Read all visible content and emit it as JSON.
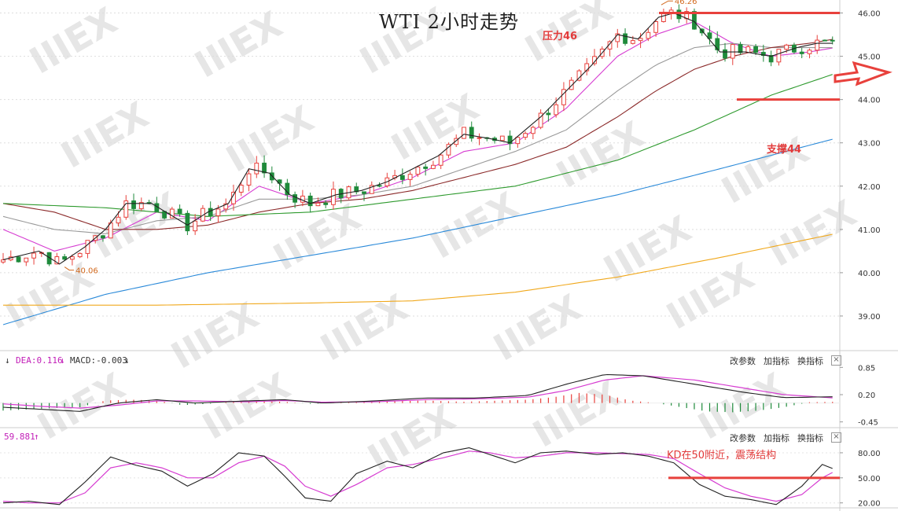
{
  "title": "WTI 2小时走势",
  "annotations": {
    "resistance": "压力46",
    "support": "支撑44",
    "kd_note": "KD在50附近，震荡结构"
  },
  "macd_panel": {
    "dea_label": "DEA:0.116",
    "macd_label": "MACD:-0.003",
    "buttons": [
      "改参数",
      "加指标",
      "换指标"
    ],
    "close": "×"
  },
  "kd_panel": {
    "k_label": "59.881",
    "buttons": [
      "改参数",
      "加指标",
      "换指标"
    ],
    "close": "×"
  },
  "colors": {
    "up": "#e8413c",
    "down": "#1f8a3b",
    "ma5": "#222222",
    "ma10": "#d63cd1",
    "ma20": "#999999",
    "ma30": "#8b2a2a",
    "ma60": "#2e9a2e",
    "ma120": "#2b8ad9",
    "ma250": "#f0a81c",
    "resistance_line": "#e8413c",
    "watermark": "#e6e6e6"
  },
  "chart_data": [
    {
      "type": "candlestick",
      "title": "WTI 2小时走势",
      "yticks": [
        "46.00",
        "45.00",
        "44.00",
        "43.00",
        "42.00",
        "41.00",
        "40.00",
        "39.00"
      ],
      "ylim": [
        38.2,
        46.3
      ],
      "price_labels": {
        "high": "46.26",
        "low": "40.06"
      },
      "levels": {
        "resistance": 46.0,
        "support": 44.0
      },
      "keypoints": {
        "close": [
          [
            0,
            40.3
          ],
          [
            14,
            40.5
          ],
          [
            22,
            40.2
          ],
          [
            32,
            40.6
          ],
          [
            40,
            41.0
          ],
          [
            48,
            41.6
          ],
          [
            58,
            41.6
          ],
          [
            72,
            41.1
          ],
          [
            80,
            41.4
          ],
          [
            88,
            41.6
          ],
          [
            96,
            42.4
          ],
          [
            104,
            42.3
          ],
          [
            112,
            41.8
          ],
          [
            120,
            41.6
          ],
          [
            130,
            41.8
          ],
          [
            140,
            41.9
          ],
          [
            150,
            42.1
          ],
          [
            160,
            42.4
          ],
          [
            170,
            42.7
          ],
          [
            180,
            43.2
          ],
          [
            190,
            43.1
          ],
          [
            198,
            43.0
          ],
          [
            210,
            43.6
          ],
          [
            220,
            44.2
          ],
          [
            230,
            44.8
          ],
          [
            240,
            45.5
          ],
          [
            248,
            45.4
          ],
          [
            256,
            45.9
          ],
          [
            262,
            46.0
          ],
          [
            270,
            45.8
          ],
          [
            280,
            45.1
          ],
          [
            290,
            45.1
          ],
          [
            300,
            45.0
          ],
          [
            310,
            45.2
          ],
          [
            318,
            45.3
          ],
          [
            325,
            45.3
          ]
        ]
      },
      "moving_averages": [
        {
          "id": "ma10",
          "points": [
            [
              0,
              41.0
            ],
            [
              20,
              40.5
            ],
            [
              40,
              40.8
            ],
            [
              60,
              41.4
            ],
            [
              80,
              41.2
            ],
            [
              100,
              42.0
            ],
            [
              120,
              41.6
            ],
            [
              140,
              41.8
            ],
            [
              160,
              42.2
            ],
            [
              180,
              42.8
            ],
            [
              200,
              43.0
            ],
            [
              220,
              43.8
            ],
            [
              240,
              45.0
            ],
            [
              255,
              45.5
            ],
            [
              270,
              45.8
            ],
            [
              285,
              45.3
            ],
            [
              300,
              45.0
            ],
            [
              315,
              45.1
            ],
            [
              325,
              45.2
            ]
          ]
        },
        {
          "id": "ma20",
          "points": [
            [
              0,
              41.3
            ],
            [
              20,
              41.0
            ],
            [
              40,
              40.9
            ],
            [
              60,
              41.2
            ],
            [
              80,
              41.3
            ],
            [
              100,
              41.7
            ],
            [
              120,
              41.7
            ],
            [
              140,
              41.8
            ],
            [
              160,
              42.0
            ],
            [
              180,
              42.4
            ],
            [
              200,
              42.8
            ],
            [
              220,
              43.3
            ],
            [
              240,
              44.2
            ],
            [
              255,
              44.8
            ],
            [
              270,
              45.2
            ],
            [
              285,
              45.3
            ],
            [
              300,
              45.2
            ],
            [
              315,
              45.2
            ],
            [
              325,
              45.2
            ]
          ]
        },
        {
          "id": "ma30",
          "points": [
            [
              0,
              41.6
            ],
            [
              20,
              41.4
            ],
            [
              40,
              41.0
            ],
            [
              60,
              41.0
            ],
            [
              80,
              41.1
            ],
            [
              100,
              41.4
            ],
            [
              120,
              41.6
            ],
            [
              140,
              41.7
            ],
            [
              160,
              41.9
            ],
            [
              180,
              42.2
            ],
            [
              200,
              42.5
            ],
            [
              220,
              42.9
            ],
            [
              240,
              43.6
            ],
            [
              255,
              44.2
            ],
            [
              270,
              44.7
            ],
            [
              285,
              45.0
            ],
            [
              300,
              45.2
            ],
            [
              315,
              45.3
            ],
            [
              325,
              45.4
            ]
          ]
        },
        {
          "id": "ma60",
          "points": [
            [
              0,
              41.6
            ],
            [
              40,
              41.5
            ],
            [
              80,
              41.3
            ],
            [
              120,
              41.4
            ],
            [
              160,
              41.7
            ],
            [
              200,
              42.0
            ],
            [
              240,
              42.6
            ],
            [
              270,
              43.3
            ],
            [
              300,
              44.1
            ],
            [
              325,
              44.6
            ]
          ]
        },
        {
          "id": "ma120",
          "points": [
            [
              0,
              38.8
            ],
            [
              40,
              39.5
            ],
            [
              80,
              40.0
            ],
            [
              120,
              40.4
            ],
            [
              160,
              40.8
            ],
            [
              200,
              41.3
            ],
            [
              240,
              41.8
            ],
            [
              280,
              42.4
            ],
            [
              325,
              43.1
            ]
          ]
        },
        {
          "id": "ma250",
          "points": [
            [
              0,
              39.25
            ],
            [
              60,
              39.25
            ],
            [
              120,
              39.3
            ],
            [
              160,
              39.35
            ],
            [
              200,
              39.55
            ],
            [
              240,
              39.9
            ],
            [
              280,
              40.35
            ],
            [
              325,
              40.9
            ]
          ]
        }
      ]
    },
    {
      "type": "macd",
      "yticks": [
        "0.85",
        "0.20",
        "-0.45"
      ],
      "ylim": [
        -0.55,
        0.95
      ],
      "dif": [
        [
          0,
          -0.1
        ],
        [
          15,
          -0.15
        ],
        [
          30,
          -0.2
        ],
        [
          45,
          0.0
        ],
        [
          60,
          0.08
        ],
        [
          75,
          0.0
        ],
        [
          95,
          0.05
        ],
        [
          110,
          0.08
        ],
        [
          125,
          0.0
        ],
        [
          145,
          0.05
        ],
        [
          165,
          0.12
        ],
        [
          185,
          0.12
        ],
        [
          205,
          0.18
        ],
        [
          220,
          0.45
        ],
        [
          235,
          0.68
        ],
        [
          250,
          0.65
        ],
        [
          270,
          0.45
        ],
        [
          290,
          0.25
        ],
        [
          305,
          0.13
        ],
        [
          325,
          0.15
        ]
      ],
      "dea": [
        [
          0,
          -0.02
        ],
        [
          15,
          -0.08
        ],
        [
          30,
          -0.12
        ],
        [
          45,
          -0.05
        ],
        [
          60,
          0.05
        ],
        [
          75,
          0.05
        ],
        [
          95,
          0.03
        ],
        [
          110,
          0.06
        ],
        [
          125,
          0.02
        ],
        [
          145,
          0.03
        ],
        [
          165,
          0.08
        ],
        [
          185,
          0.1
        ],
        [
          205,
          0.14
        ],
        [
          220,
          0.3
        ],
        [
          235,
          0.55
        ],
        [
          250,
          0.65
        ],
        [
          270,
          0.55
        ],
        [
          290,
          0.35
        ],
        [
          305,
          0.2
        ],
        [
          325,
          0.12
        ]
      ],
      "hist": [
        [
          0,
          -0.18
        ],
        [
          10,
          -0.15
        ],
        [
          20,
          -0.12
        ],
        [
          30,
          -0.1
        ],
        [
          40,
          0.06
        ],
        [
          50,
          0.08
        ],
        [
          60,
          0.06
        ],
        [
          70,
          -0.05
        ],
        [
          80,
          -0.02
        ],
        [
          90,
          0.03
        ],
        [
          100,
          0.04
        ],
        [
          110,
          0.03
        ],
        [
          120,
          -0.02
        ],
        [
          135,
          0.02
        ],
        [
          150,
          0.04
        ],
        [
          165,
          0.06
        ],
        [
          180,
          0.03
        ],
        [
          195,
          0.06
        ],
        [
          205,
          0.08
        ],
        [
          215,
          0.14
        ],
        [
          225,
          0.24
        ],
        [
          235,
          0.2
        ],
        [
          245,
          0.06
        ],
        [
          255,
          0.0
        ],
        [
          265,
          -0.1
        ],
        [
          275,
          -0.2
        ],
        [
          285,
          -0.22
        ],
        [
          295,
          -0.18
        ],
        [
          305,
          -0.1
        ],
        [
          315,
          0.02
        ],
        [
          325,
          0.03
        ]
      ]
    },
    {
      "type": "kd",
      "yticks": [
        "80.00",
        "50.00",
        "20.00"
      ],
      "ylim": [
        15,
        95
      ],
      "k": [
        [
          0,
          20
        ],
        [
          10,
          22
        ],
        [
          22,
          18
        ],
        [
          32,
          45
        ],
        [
          42,
          75
        ],
        [
          52,
          65
        ],
        [
          62,
          58
        ],
        [
          72,
          40
        ],
        [
          82,
          55
        ],
        [
          92,
          80
        ],
        [
          102,
          76
        ],
        [
          110,
          52
        ],
        [
          118,
          26
        ],
        [
          128,
          22
        ],
        [
          138,
          55
        ],
        [
          150,
          70
        ],
        [
          160,
          62
        ],
        [
          172,
          80
        ],
        [
          182,
          86
        ],
        [
          190,
          78
        ],
        [
          200,
          68
        ],
        [
          210,
          80
        ],
        [
          220,
          82
        ],
        [
          232,
          78
        ],
        [
          242,
          80
        ],
        [
          252,
          76
        ],
        [
          262,
          68
        ],
        [
          272,
          42
        ],
        [
          282,
          28
        ],
        [
          292,
          24
        ],
        [
          302,
          18
        ],
        [
          312,
          40
        ],
        [
          320,
          66
        ],
        [
          325,
          60
        ]
      ],
      "d": [
        [
          0,
          22
        ],
        [
          10,
          20
        ],
        [
          22,
          20
        ],
        [
          32,
          32
        ],
        [
          42,
          62
        ],
        [
          52,
          68
        ],
        [
          62,
          62
        ],
        [
          72,
          50
        ],
        [
          82,
          50
        ],
        [
          92,
          68
        ],
        [
          102,
          76
        ],
        [
          110,
          64
        ],
        [
          118,
          40
        ],
        [
          128,
          28
        ],
        [
          138,
          42
        ],
        [
          150,
          62
        ],
        [
          160,
          66
        ],
        [
          172,
          74
        ],
        [
          182,
          82
        ],
        [
          190,
          80
        ],
        [
          200,
          74
        ],
        [
          210,
          76
        ],
        [
          220,
          80
        ],
        [
          232,
          80
        ],
        [
          242,
          79
        ],
        [
          252,
          78
        ],
        [
          262,
          73
        ],
        [
          272,
          55
        ],
        [
          282,
          38
        ],
        [
          292,
          28
        ],
        [
          302,
          22
        ],
        [
          312,
          30
        ],
        [
          320,
          50
        ],
        [
          325,
          58
        ]
      ],
      "level_50": 50
    }
  ]
}
